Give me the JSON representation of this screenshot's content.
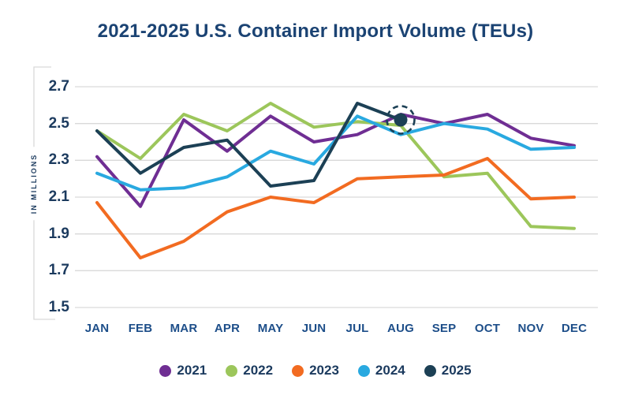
{
  "title": "2021-2025 U.S. Container Import Volume (TEUs)",
  "chart_data": {
    "type": "line",
    "title": "2021-2025 U.S. Container Import Volume (TEUs)",
    "xlabel": "",
    "ylabel": "IN MILLIONS",
    "ylim": [
      1.5,
      2.7
    ],
    "yticks": [
      2.7,
      2.5,
      2.3,
      2.1,
      1.9,
      1.7,
      1.5
    ],
    "grid": true,
    "legend_position": "bottom",
    "categories": [
      "JAN",
      "FEB",
      "MAR",
      "APR",
      "MAY",
      "JUN",
      "JUL",
      "AUG",
      "SEP",
      "OCT",
      "NOV",
      "DEC"
    ],
    "series": [
      {
        "name": "2021",
        "color": "#6f2e93",
        "values": [
          2.32,
          2.05,
          2.52,
          2.35,
          2.54,
          2.4,
          2.44,
          2.55,
          2.5,
          2.55,
          2.42,
          2.38
        ]
      },
      {
        "name": "2022",
        "color": "#9cc65b",
        "values": [
          2.46,
          2.31,
          2.55,
          2.46,
          2.61,
          2.48,
          2.51,
          2.49,
          2.21,
          2.23,
          1.94,
          1.93
        ]
      },
      {
        "name": "2023",
        "color": "#f26b21",
        "values": [
          2.07,
          1.77,
          1.86,
          2.02,
          2.1,
          2.07,
          2.2,
          2.21,
          2.22,
          2.31,
          2.09,
          2.1
        ]
      },
      {
        "name": "2024",
        "color": "#29a9e0",
        "values": [
          2.23,
          2.14,
          2.15,
          2.21,
          2.35,
          2.28,
          2.54,
          2.44,
          2.5,
          2.47,
          2.36,
          2.37
        ]
      },
      {
        "name": "2025",
        "color": "#1c4055",
        "values": [
          2.46,
          2.23,
          2.37,
          2.41,
          2.16,
          2.19,
          2.61,
          2.52
        ]
      }
    ],
    "highlight": {
      "series": "2025",
      "category": "AUG",
      "value": 2.52,
      "style": "filled-dot-with-dashed-circle"
    }
  },
  "colors": {
    "grid": "#d9d9d9",
    "bracket": "#d9d9d9",
    "title_text": "#1b4373",
    "axis_tick_text": "#1b3a5e",
    "month_text": "#1d4e89",
    "legend_text": "#1b3a5e"
  }
}
